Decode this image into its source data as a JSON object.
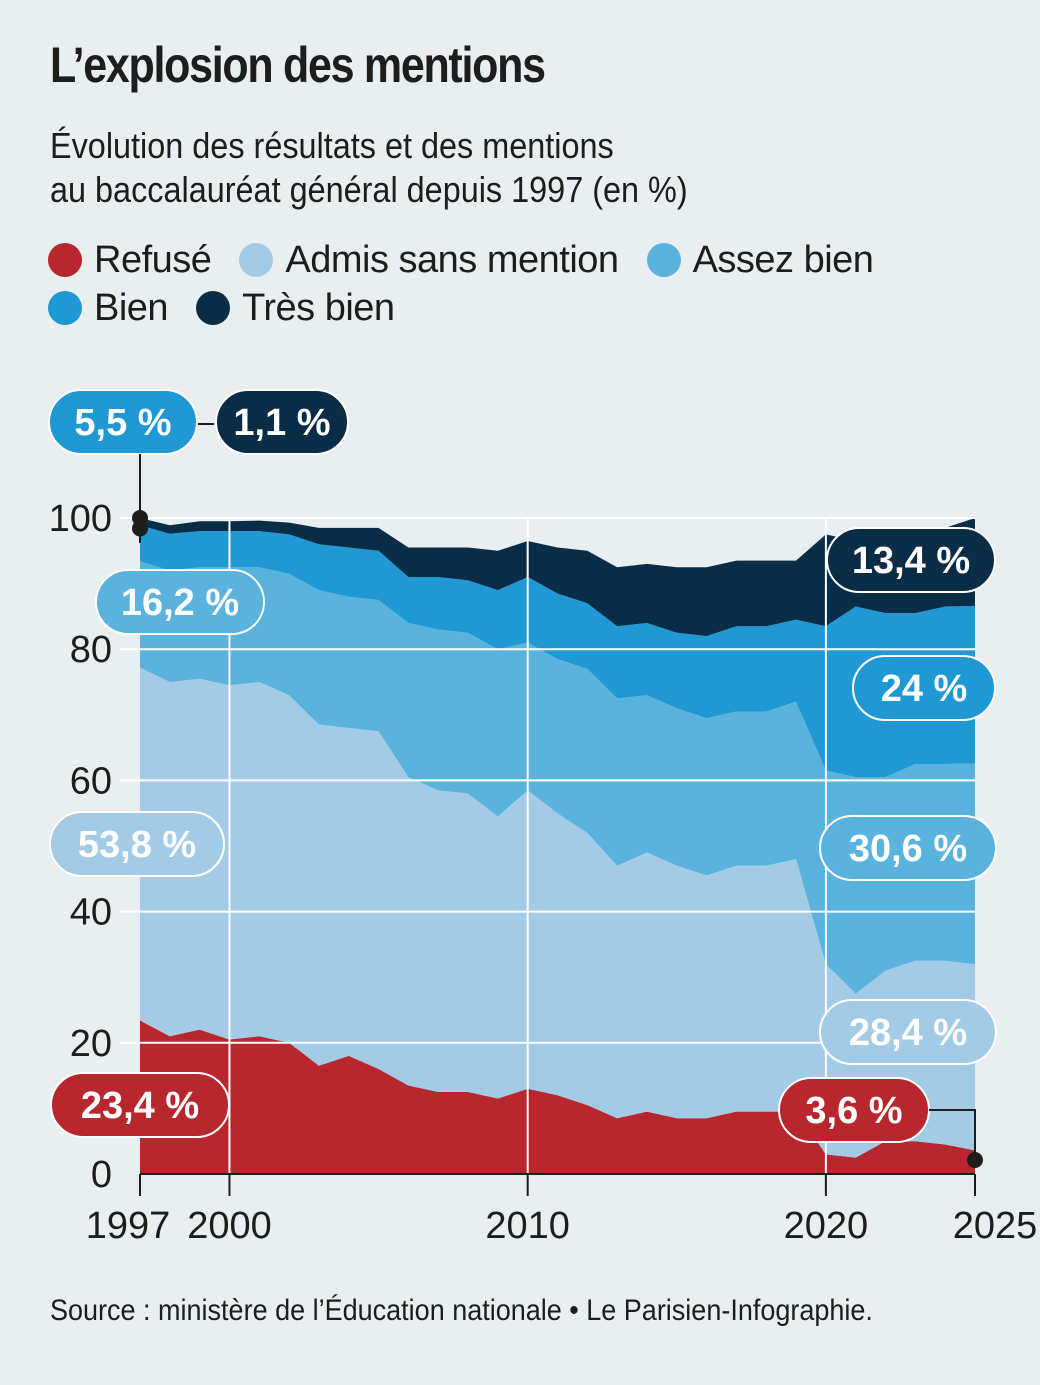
{
  "title": "L’explosion des mentions",
  "subtitle": {
    "line1": "Évolution des résultats et des mentions",
    "line2": "au baccalauréat général depuis 1997 (en %)"
  },
  "source": "Source : ministère de l’Éducation nationale • Le Parisien-Infographie.",
  "colors": {
    "refuse": "#b8262e",
    "admis": "#a3cbe6",
    "assez_bien": "#59b3dc",
    "bien": "#1f98d4",
    "tres_bien": "#0a2d47",
    "grid": "#ffffff",
    "background": "#e9eef0"
  },
  "legend": [
    {
      "label": "Refusé",
      "color": "#b8262e"
    },
    {
      "label": "Admis sans mention",
      "color": "#a3cbe6"
    },
    {
      "label": "Assez bien",
      "color": "#59b3dc"
    },
    {
      "label": "Bien",
      "color": "#1f98d4"
    },
    {
      "label": "Très bien",
      "color": "#0a2d47"
    }
  ],
  "chart_data": {
    "type": "area",
    "stacked": true,
    "title": "L’explosion des mentions",
    "x": [
      1997,
      1998,
      1999,
      2000,
      2001,
      2002,
      2003,
      2004,
      2005,
      2006,
      2007,
      2008,
      2009,
      2010,
      2011,
      2012,
      2013,
      2014,
      2015,
      2016,
      2017,
      2018,
      2019,
      2020,
      2021,
      2022,
      2023,
      2024,
      2025
    ],
    "xticks": [
      1997,
      2000,
      2010,
      2020,
      2025
    ],
    "xtick_labels": [
      "1997",
      "2000",
      "2010",
      "2020",
      "2025"
    ],
    "yticks": [
      0,
      20,
      40,
      60,
      80,
      100
    ],
    "ytick_labels": [
      "0",
      "20",
      "40",
      "60",
      "80",
      "100"
    ],
    "ylim": [
      0,
      100
    ],
    "xlim": [
      1997,
      2025
    ],
    "series": [
      {
        "name": "Refusé",
        "key": "refuse",
        "values": [
          23.4,
          21,
          22,
          20.5,
          21,
          20,
          16.5,
          18,
          16,
          13.5,
          12.5,
          12.5,
          11.5,
          13,
          12,
          10.5,
          8.5,
          9.5,
          8.5,
          8.5,
          9.5,
          9.5,
          9.5,
          3,
          2.5,
          5,
          5,
          4.5,
          3.6
        ]
      },
      {
        "name": "Admis sans mention",
        "key": "admis",
        "values": [
          53.8,
          54,
          53.5,
          54,
          54,
          53,
          52,
          50,
          51.5,
          47,
          46,
          45.5,
          43,
          45.5,
          43,
          41.5,
          38.5,
          39.5,
          38.5,
          37,
          37.5,
          37.5,
          38.5,
          29,
          25,
          26,
          27.5,
          28,
          28.4
        ]
      },
      {
        "name": "Assez bien",
        "key": "assez_bien",
        "values": [
          16.2,
          17,
          17,
          18,
          17.5,
          18.5,
          20.5,
          20,
          20,
          23.5,
          24.5,
          24.5,
          25.5,
          22.5,
          23.5,
          25,
          25.5,
          24,
          24,
          24,
          23.5,
          23.5,
          24,
          29.5,
          33,
          29.5,
          30,
          30,
          30.6
        ]
      },
      {
        "name": "Bien",
        "key": "bien",
        "values": [
          5.5,
          5.6,
          5.5,
          5.5,
          5.5,
          6,
          7,
          7.5,
          7.5,
          7,
          8,
          8,
          9,
          10,
          10,
          10,
          11,
          11,
          11.5,
          12.5,
          13,
          13,
          12.5,
          22,
          26,
          25,
          23,
          24,
          24
        ]
      },
      {
        "name": "Très bien",
        "key": "tres_bien",
        "values": [
          1.1,
          1.3,
          1.5,
          1.5,
          1.6,
          1.8,
          2.5,
          3,
          3.5,
          4.5,
          4.5,
          5,
          6,
          5.5,
          7,
          8,
          9,
          9,
          10,
          10.5,
          10,
          10,
          9,
          14,
          10,
          10,
          11,
          12,
          13.4
        ]
      }
    ],
    "annotations": [
      {
        "key": "bien",
        "text": "5,5 %",
        "year": 1997
      },
      {
        "key": "tres_bien",
        "text": "1,1 %",
        "year": 1997
      },
      {
        "key": "assez_bien",
        "text": "16,2 %",
        "year": 1997
      },
      {
        "key": "admis",
        "text": "53,8 %",
        "year": 1997
      },
      {
        "key": "refuse",
        "text": "23,4 %",
        "year": 1997
      },
      {
        "key": "tres_bien",
        "text": "13,4 %",
        "year": 2025
      },
      {
        "key": "bien",
        "text": "24 %",
        "year": 2025
      },
      {
        "key": "assez_bien",
        "text": "30,6 %",
        "year": 2025
      },
      {
        "key": "admis",
        "text": "28,4 %",
        "year": 2025
      },
      {
        "key": "refuse",
        "text": "3,6 %",
        "year": 2025
      }
    ]
  }
}
